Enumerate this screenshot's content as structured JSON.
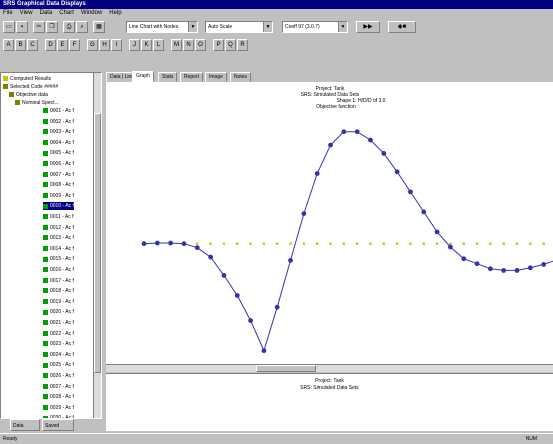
{
  "window": {
    "title": "SRS Graphical Data Displays"
  },
  "menu": [
    "File",
    "View",
    "Data",
    "Chart",
    "Window",
    "Help"
  ],
  "toolbar": {
    "combo_chart": "Line Chart with Nodes",
    "combo_scale": "Auto Scale",
    "combo_range": "Coeff 97 (3.0.7)",
    "buttons_row1": [
      "New",
      "Save",
      "Cut",
      "Copy",
      "Paste",
      "Print",
      "Zoom",
      "Grid",
      "Run"
    ],
    "buttons_row2": [
      "A",
      "B",
      "C",
      "D",
      "E",
      "F",
      "G",
      "H",
      "I",
      "J",
      "K",
      "L",
      "M",
      "N",
      "O",
      "P",
      "Q",
      "R"
    ]
  },
  "tree": {
    "root_items": [
      "Computed Results",
      "Selected Code #####",
      "Objective data",
      "Nominal Spect..."
    ],
    "leaves": [
      "0001 - Ac f",
      "0002 - Ac f",
      "0003 - Ac f",
      "0004 - Ac f",
      "0005 - Ac f",
      "0006 - Ac f",
      "0007 - Ac f",
      "0008 - Ac f",
      "0009 - Ac f",
      "0010 - Ac f",
      "0011 - Ac f",
      "0012 - Ac f",
      "0013 - Ac f",
      "0014 - Ac f",
      "0015 - Ac f",
      "0016 - Ac f",
      "0017 - Ac f",
      "0018 - Ac f",
      "0019 - Ac f",
      "0020 - Ac f",
      "0021 - Ac f",
      "0022 - Ac f",
      "0023 - Ac f",
      "0024 - Ac f",
      "0025 - Ac f",
      "0026 - Ac f",
      "0027 - Ac f",
      "0028 - Ac f",
      "0029 - Ac f",
      "0030 - Ac f"
    ],
    "selected_index": 9,
    "panel_tabs": [
      "Data",
      "Saved"
    ]
  },
  "tabs": [
    "Data | Line",
    "Graph",
    "Stats",
    "Report",
    "Image",
    "Notes"
  ],
  "active_tab_index": 1,
  "chart_header": {
    "line1": "Project: Tank",
    "line2": "SRS: Simulated Data Sets",
    "line3": "Shape 1: H/D/D of 3.0",
    "line4": "Objective function"
  },
  "lower_header": {
    "line1": "Project: Tank",
    "line2": "SRS: Simulated Data Sets"
  },
  "status": {
    "left": "Ready",
    "right": "NUM"
  },
  "colors": {
    "series": "#3333aa",
    "dashed": "#c8c800",
    "titlebar": "#000080"
  },
  "chart_data": {
    "type": "line",
    "title": "",
    "xlabel": "",
    "ylabel": "",
    "series": [
      {
        "values": [
          0.0,
          0.02,
          0.02,
          0.0,
          -0.12,
          -0.4,
          -0.95,
          -1.55,
          -2.3,
          -3.2,
          -1.9,
          -0.5,
          0.9,
          2.1,
          2.95,
          3.35,
          3.35,
          3.1,
          2.7,
          2.15,
          1.55,
          0.95,
          0.35,
          -0.1,
          -0.45,
          -0.6,
          -0.75,
          -0.8,
          -0.8,
          -0.72,
          -0.62,
          -0.48
        ]
      },
      {
        "values": [
          0,
          0,
          0,
          0,
          0,
          0,
          0,
          0,
          0,
          0,
          0,
          0,
          0,
          0,
          0,
          0,
          0,
          0,
          0,
          0,
          0,
          0,
          0,
          0,
          0,
          0,
          0,
          0,
          0,
          0,
          0,
          0
        ]
      }
    ],
    "ylim": [
      -3.6,
      4.0
    ]
  }
}
